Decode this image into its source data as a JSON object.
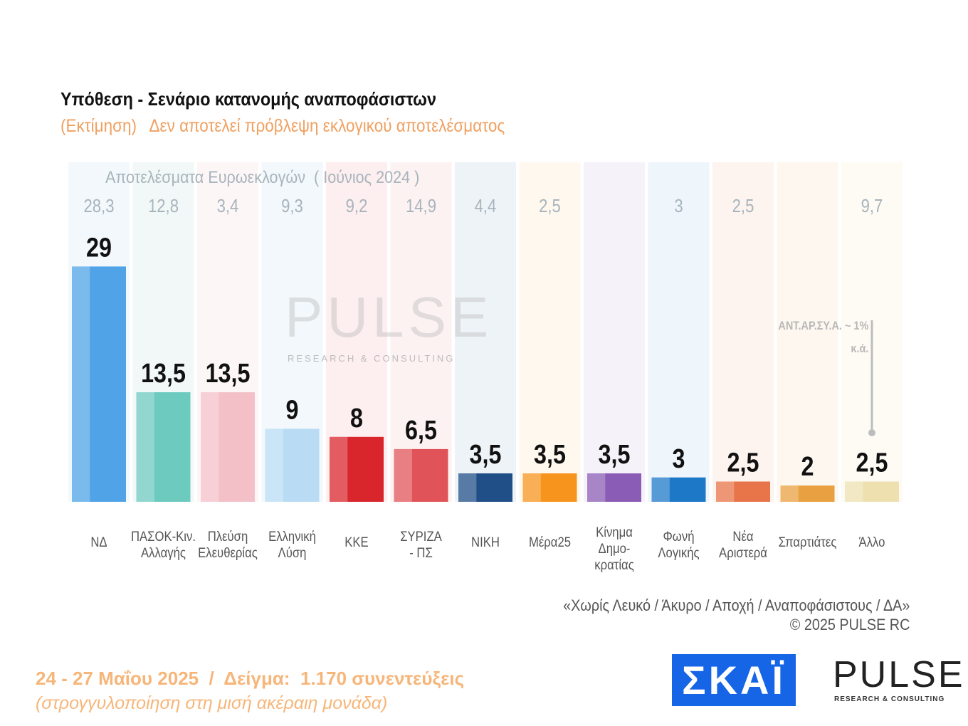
{
  "header": {
    "title": "Υπόθεση - Σενάριο κατανομής αναποφάσιστων",
    "subtitle": "(Εκτίμηση)   Δεν αποτελεί πρόβλεψη εκλογικού αποτελέσματος"
  },
  "chart_data": {
    "type": "bar",
    "title": "Υπόθεση - Σενάριο κατανομής αναποφάσιστων",
    "previous_label": "Αποτελέσματα Ευρωεκλογών  ( Ιούνιος 2024 )",
    "categories": [
      "ΝΔ",
      "ΠΑΣΟΚ-Κιν. Αλλαγής",
      "Πλεύση Ελευθερίας",
      "Ελληνική Λύση",
      "ΚΚΕ",
      "ΣΥΡΙΖΑ - ΠΣ",
      "ΝΙΚΗ",
      "Μέρα25",
      "Κίνημα Δημο-κρατίας",
      "Φωνή Λογικής",
      "Νέα Αριστερά",
      "Σπαρτιάτες",
      "Άλλο"
    ],
    "category_lines": [
      [
        "ΝΔ"
      ],
      [
        "ΠΑΣΟΚ-Κιν.",
        "Αλλαγής"
      ],
      [
        "Πλεύση",
        "Ελευθερίας"
      ],
      [
        "Ελληνική",
        "Λύση"
      ],
      [
        "ΚΚΕ"
      ],
      [
        "ΣΥΡΙΖΑ",
        "- ΠΣ"
      ],
      [
        "ΝΙΚΗ"
      ],
      [
        "Μέρα25"
      ],
      [
        "Κίνημα",
        "Δημο-",
        "κρατίας"
      ],
      [
        "Φωνή",
        "Λογικής"
      ],
      [
        "Νέα",
        "Αριστερά"
      ],
      [
        "Σπαρτιάτες"
      ],
      [
        "Άλλο"
      ]
    ],
    "values": [
      29,
      13.5,
      13.5,
      9,
      8,
      6.5,
      3.5,
      3.5,
      3.5,
      3,
      2.5,
      2,
      2.5
    ],
    "value_labels": [
      "29",
      "13,5",
      "13,5",
      "9",
      "8",
      "6,5",
      "3,5",
      "3,5",
      "3,5",
      "3",
      "2,5",
      "2",
      "2,5"
    ],
    "previous_values": [
      "28,3",
      "12,8",
      "3,4",
      "9,3",
      "9,2",
      "14,9",
      "4,4",
      "2,5",
      "",
      "3",
      "2,5",
      "",
      "9,7"
    ],
    "colors": [
      "#4fa3e6",
      "#6ccabf",
      "#f3c0c8",
      "#b9dcf4",
      "#d8262c",
      "#e05459",
      "#1f4f86",
      "#f7941d",
      "#8a5cb5",
      "#1e78c8",
      "#e8744a",
      "#e8a040",
      "#efe0b0"
    ],
    "bg_colors": [
      "#f3f8fc",
      "#f2f8f8",
      "#fdf6f7",
      "#f2f8fc",
      "#fdeeef",
      "#fdf2f2",
      "#eef3f7",
      "#fff8ee",
      "#f6f2f9",
      "#eef5fb",
      "#fdf4ef",
      "#fdf7ef",
      "#fdfbf4"
    ],
    "ylim": [
      0,
      30
    ],
    "grid": false,
    "legend": "none",
    "annotation": [
      "ΑΝΤ.ΑΡ.ΣΥ.Α. ~ 1%",
      "κ.ά."
    ]
  },
  "notes": {
    "line1": "«Χωρίς Λευκό / Άκυρο / Αποχή / Αναποφάσιστους / ΔΑ»",
    "line2": "©  2025  PULSE RC"
  },
  "footer": {
    "line1": "24 - 27 Μαΐου 2025  /  Δείγμα:  1.170 συνεντεύξεις",
    "line2": "(στρογγυλοποίηση στη μισή ακέραιη μονάδα)"
  },
  "logos": {
    "skai": "ΣΚΑΪ",
    "pulse": "PULSE",
    "pulse_sub": "RESEARCH & CONSULTING",
    "watermark": "PULSE",
    "watermark_sub": "RESEARCH & CONSULTING"
  }
}
